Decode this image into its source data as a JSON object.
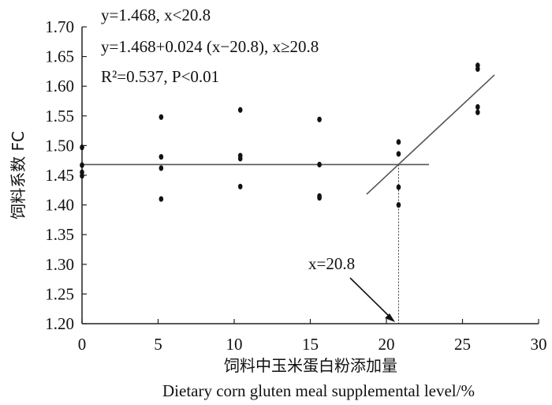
{
  "chart_data": {
    "type": "scatter",
    "xlabel_cn": "饲料中玉米蛋白粉添加量",
    "xlabel_en": "Dietary corn gluten meal supplemental level/%",
    "ylabel": "饲料系数 FC",
    "xlim": [
      0,
      30
    ],
    "ylim": [
      1.2,
      1.7
    ],
    "x_ticks": [
      0,
      5,
      10,
      15,
      20,
      25,
      30
    ],
    "y_ticks": [
      1.2,
      1.25,
      1.3,
      1.35,
      1.4,
      1.45,
      1.5,
      1.55,
      1.6,
      1.65,
      1.7
    ],
    "y_tick_labels": [
      "1.20",
      "1.25",
      "1.30",
      "1.35",
      "1.40",
      "1.45",
      "1.50",
      "1.55",
      "1.60",
      "1.65",
      "1.70"
    ],
    "points": [
      {
        "x": 0,
        "y": 1.497
      },
      {
        "x": 0,
        "y": 1.467
      },
      {
        "x": 0,
        "y": 1.455
      },
      {
        "x": 0,
        "y": 1.449
      },
      {
        "x": 5.2,
        "y": 1.548
      },
      {
        "x": 5.2,
        "y": 1.481
      },
      {
        "x": 5.2,
        "y": 1.462
      },
      {
        "x": 5.2,
        "y": 1.41
      },
      {
        "x": 10.4,
        "y": 1.56
      },
      {
        "x": 10.4,
        "y": 1.483
      },
      {
        "x": 10.4,
        "y": 1.478
      },
      {
        "x": 10.4,
        "y": 1.431
      },
      {
        "x": 15.6,
        "y": 1.544
      },
      {
        "x": 15.6,
        "y": 1.468
      },
      {
        "x": 15.6,
        "y": 1.415
      },
      {
        "x": 15.6,
        "y": 1.412
      },
      {
        "x": 20.8,
        "y": 1.506
      },
      {
        "x": 20.8,
        "y": 1.486
      },
      {
        "x": 20.8,
        "y": 1.43
      },
      {
        "x": 20.8,
        "y": 1.4
      },
      {
        "x": 26,
        "y": 1.635
      },
      {
        "x": 26,
        "y": 1.629
      },
      {
        "x": 26,
        "y": 1.565
      },
      {
        "x": 26,
        "y": 1.556
      }
    ],
    "fit_lines": [
      {
        "name": "plateau",
        "x": [
          0,
          22.8
        ],
        "y": [
          1.468,
          1.468
        ]
      },
      {
        "name": "slope",
        "x": [
          18.7,
          27.1
        ],
        "y": [
          1.418,
          1.619
        ]
      }
    ],
    "breakpoint": {
      "x": 20.8,
      "y": 1.468,
      "label": "x=20.8"
    },
    "equations": [
      "y=1.468, x<20.8",
      "y=1.468+0.024 (x−20.8), x≥20.8",
      "R²=0.537, P<0.01"
    ]
  }
}
